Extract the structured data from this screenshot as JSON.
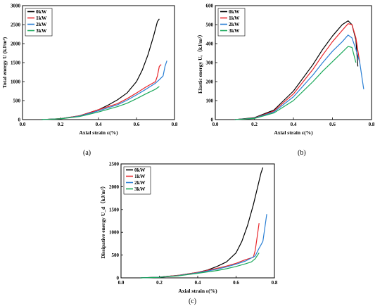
{
  "chart_data": [
    {
      "type": "line",
      "xlabel": "Axial strain ε(%)",
      "ylabel": "Total energy U (kJ/m³)",
      "xlim": [
        0.0,
        0.8
      ],
      "ylim": [
        0,
        3000
      ],
      "xticks": [
        "0.0",
        "0.2",
        "0.4",
        "0.6",
        "0.8"
      ],
      "yticks": [
        "0",
        "500",
        "1000",
        "1500",
        "2000",
        "2500",
        "3000"
      ],
      "legend": "top-left",
      "caption": "(a)",
      "series": [
        {
          "name": "0kW",
          "color": "#000000",
          "x": [
            0.1,
            0.2,
            0.3,
            0.4,
            0.45,
            0.5,
            0.55,
            0.6,
            0.63,
            0.66,
            0.69,
            0.71,
            0.72
          ],
          "y": [
            0,
            25,
            100,
            260,
            380,
            520,
            700,
            1000,
            1300,
            1700,
            2200,
            2580,
            2650
          ]
        },
        {
          "name": "1kW",
          "color": "#e8262b",
          "x": [
            0.1,
            0.2,
            0.3,
            0.4,
            0.5,
            0.55,
            0.6,
            0.65,
            0.7,
            0.71,
            0.72,
            0.73
          ],
          "y": [
            0,
            25,
            100,
            260,
            420,
            550,
            700,
            860,
            1000,
            1150,
            1400,
            1450
          ]
        },
        {
          "name": "2kW",
          "color": "#2a7fd4",
          "x": [
            0.1,
            0.2,
            0.3,
            0.4,
            0.5,
            0.55,
            0.6,
            0.65,
            0.7,
            0.72,
            0.74,
            0.75,
            0.76
          ],
          "y": [
            0,
            22,
            90,
            230,
            390,
            510,
            650,
            800,
            960,
            1050,
            1150,
            1400,
            1550
          ]
        },
        {
          "name": "3kW",
          "color": "#1aa85a",
          "x": [
            0.1,
            0.2,
            0.3,
            0.4,
            0.5,
            0.55,
            0.6,
            0.65,
            0.7,
            0.72
          ],
          "y": [
            0,
            20,
            80,
            200,
            340,
            430,
            550,
            680,
            800,
            870
          ]
        }
      ]
    },
    {
      "type": "line",
      "xlabel": "Axial strain ε(%)",
      "ylabel": "Elastic energy Uₑ（kJ/m³）",
      "xlim": [
        0.0,
        0.8
      ],
      "ylim": [
        0,
        600
      ],
      "xticks": [
        "0.0",
        "0.2",
        "0.4",
        "0.6",
        "0.8"
      ],
      "yticks": [
        "0",
        "100",
        "200",
        "300",
        "400",
        "500",
        "600"
      ],
      "legend": "top-left",
      "caption": "(b)",
      "series": [
        {
          "name": "0kW",
          "color": "#000000",
          "x": [
            0.1,
            0.2,
            0.3,
            0.4,
            0.5,
            0.55,
            0.6,
            0.65,
            0.68,
            0.7,
            0.72,
            0.73
          ],
          "y": [
            0,
            10,
            50,
            150,
            290,
            370,
            440,
            500,
            520,
            500,
            420,
            280
          ]
        },
        {
          "name": "1kW",
          "color": "#e8262b",
          "x": [
            0.1,
            0.2,
            0.3,
            0.4,
            0.5,
            0.55,
            0.6,
            0.65,
            0.68,
            0.7,
            0.72,
            0.74
          ],
          "y": [
            0,
            8,
            45,
            135,
            265,
            340,
            410,
            470,
            505,
            500,
            430,
            300
          ]
        },
        {
          "name": "2kW",
          "color": "#2a7fd4",
          "x": [
            0.1,
            0.2,
            0.3,
            0.4,
            0.5,
            0.55,
            0.6,
            0.65,
            0.68,
            0.7,
            0.72,
            0.74,
            0.76
          ],
          "y": [
            0,
            7,
            40,
            120,
            235,
            300,
            360,
            410,
            445,
            430,
            370,
            300,
            160
          ]
        },
        {
          "name": "3kW",
          "color": "#1aa85a",
          "x": [
            0.1,
            0.2,
            0.3,
            0.4,
            0.5,
            0.55,
            0.6,
            0.65,
            0.68,
            0.7,
            0.72
          ],
          "y": [
            0,
            6,
            35,
            100,
            200,
            255,
            305,
            355,
            385,
            380,
            300
          ]
        }
      ]
    },
    {
      "type": "line",
      "xlabel": "Axial strain ε(%)",
      "ylabel": "Dissipative energy U_d（kJ/m³）",
      "xlim": [
        0.0,
        0.8
      ],
      "ylim": [
        0,
        2500
      ],
      "xticks": [
        "0.0",
        "0.2",
        "0.4",
        "0.6",
        "0.8"
      ],
      "yticks": [
        "0",
        "500",
        "1000",
        "1500",
        "2000",
        "2500"
      ],
      "legend": "top-left",
      "caption": "(c)",
      "series": [
        {
          "name": "0kW",
          "color": "#000000",
          "x": [
            0.1,
            0.2,
            0.3,
            0.4,
            0.45,
            0.5,
            0.55,
            0.6,
            0.63,
            0.66,
            0.69,
            0.71,
            0.73,
            0.74
          ],
          "y": [
            0,
            15,
            55,
            120,
            170,
            250,
            350,
            550,
            800,
            1150,
            1600,
            1950,
            2300,
            2420
          ]
        },
        {
          "name": "1kW",
          "color": "#e8262b",
          "x": [
            0.1,
            0.2,
            0.3,
            0.4,
            0.5,
            0.55,
            0.6,
            0.65,
            0.69,
            0.7,
            0.71,
            0.72
          ],
          "y": [
            0,
            15,
            55,
            120,
            210,
            260,
            320,
            400,
            450,
            600,
            900,
            1200
          ]
        },
        {
          "name": "2kW",
          "color": "#2a7fd4",
          "x": [
            0.1,
            0.2,
            0.3,
            0.4,
            0.5,
            0.55,
            0.6,
            0.65,
            0.7,
            0.72,
            0.74,
            0.75,
            0.76
          ],
          "y": [
            0,
            14,
            50,
            110,
            190,
            240,
            300,
            370,
            480,
            650,
            800,
            1100,
            1400
          ]
        },
        {
          "name": "3kW",
          "color": "#1aa85a",
          "x": [
            0.1,
            0.2,
            0.3,
            0.4,
            0.5,
            0.55,
            0.6,
            0.65,
            0.68,
            0.7,
            0.72
          ],
          "y": [
            0,
            13,
            45,
            100,
            160,
            200,
            250,
            310,
            350,
            420,
            550
          ]
        }
      ]
    }
  ]
}
